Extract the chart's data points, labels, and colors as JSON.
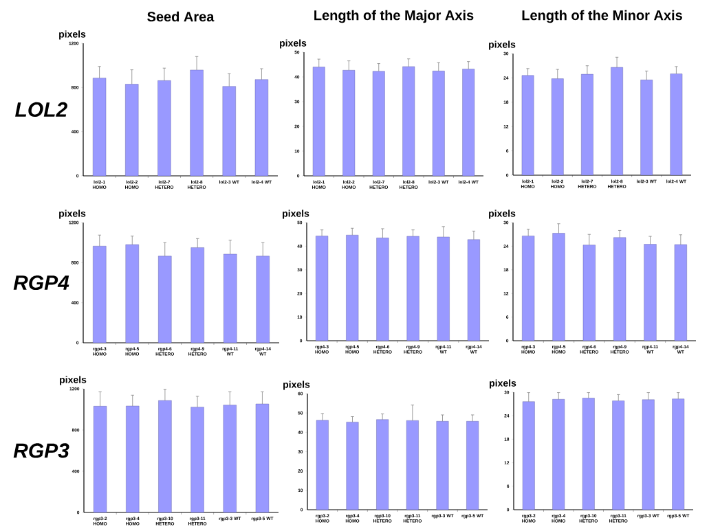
{
  "chart_data": [
    {
      "type": "bar",
      "title": "Seed Area",
      "ylabel": "pixels",
      "annotations": [
        "LOL2"
      ],
      "color": "#9999ff",
      "categories": [
        "lol2-1 HOMO",
        "lol2-2 HOMO",
        "lol2-7 HETERO",
        "lol2-8 HETERO",
        "lol2-3 WT",
        "lol2-4 WT"
      ],
      "values": [
        885,
        830,
        862,
        958,
        810,
        872
      ],
      "errors": [
        105,
        130,
        113,
        122,
        115,
        98
      ],
      "ylim": [
        0,
        1200
      ],
      "yticks": [
        0,
        400,
        800,
        1200
      ]
    },
    {
      "type": "bar",
      "title": "Length of the Major Axis",
      "ylabel": "pixels",
      "color": "#9999ff",
      "categories": [
        "lol2-1 HOMO",
        "lol2-2 HOMO",
        "lol2-7 HETERO",
        "lol2-8 HETERO",
        "lol2-3 WT",
        "lol2-4 WT"
      ],
      "values": [
        44.0,
        42.7,
        42.3,
        44.2,
        42.4,
        43.2
      ],
      "errors": [
        3.2,
        3.8,
        3.1,
        3.1,
        3.4,
        3.0
      ],
      "ylim": [
        0,
        50
      ],
      "yticks": [
        0,
        10,
        20,
        30,
        40,
        50
      ]
    },
    {
      "type": "bar",
      "title": "Length of the Minor Axis",
      "ylabel": "pixels",
      "color": "#9999ff",
      "categories": [
        "lol2-1 HOMO",
        "lol2-2 HOMO",
        "lol2-7 HETERO",
        "lol2-8 HETERO",
        "lol2-3 WT",
        "lol2-4 WT"
      ],
      "values": [
        24.6,
        23.8,
        24.9,
        26.6,
        23.5,
        25.0
      ],
      "errors": [
        1.7,
        2.3,
        2.1,
        2.5,
        2.2,
        1.8
      ],
      "ylim": [
        0,
        30
      ],
      "yticks": [
        0,
        6,
        12,
        18,
        24,
        30
      ]
    },
    {
      "type": "bar",
      "ylabel": "pixels",
      "annotations": [
        "RGP4"
      ],
      "color": "#9999ff",
      "categories": [
        "rgp4-3 HOMO",
        "rgp4-5 HOMO",
        "rgp4-6 HETERO",
        "rgp4-9 HETERO",
        "rgp4-11 WT",
        "rgp4-14 WT"
      ],
      "values": [
        965,
        980,
        865,
        950,
        885,
        865
      ],
      "errors": [
        110,
        85,
        135,
        90,
        140,
        135
      ],
      "ylim": [
        0,
        1200
      ],
      "yticks": [
        0,
        400,
        800,
        1200
      ]
    },
    {
      "type": "bar",
      "ylabel": "pixels",
      "color": "#9999ff",
      "categories": [
        "rgp4-3 HOMO",
        "rgp4-5 HOMO",
        "rgp4-6 HETERO",
        "rgp4-9 HETERO",
        "rgp4-11 WT",
        "rgp4-14 WT"
      ],
      "values": [
        44.3,
        44.7,
        43.5,
        44.2,
        43.9,
        42.8
      ],
      "errors": [
        2.6,
        2.9,
        3.9,
        2.7,
        4.4,
        3.6
      ],
      "ylim": [
        0,
        50
      ],
      "yticks": [
        0,
        10,
        20,
        30,
        40,
        50
      ]
    },
    {
      "type": "bar",
      "ylabel": "pixels",
      "color": "#9999ff",
      "categories": [
        "rgp4-3 HOMO",
        "rgp4-5 HOMO",
        "rgp4-6 HETERO",
        "rgp4-9 HETERO",
        "rgp4-11 WT",
        "rgp4-14 WT"
      ],
      "values": [
        26.6,
        27.3,
        24.3,
        26.2,
        24.5,
        24.4
      ],
      "errors": [
        1.7,
        2.4,
        2.7,
        1.8,
        2.0,
        2.5
      ],
      "ylim": [
        0,
        30
      ],
      "yticks": [
        0,
        6,
        12,
        18,
        24,
        30
      ]
    },
    {
      "type": "bar",
      "ylabel": "pixels",
      "annotations": [
        "RGP3"
      ],
      "color": "#9999ff",
      "categories": [
        "rgp3-2 HOMO",
        "rgp3-4 HOMO",
        "rgp3-10 HETERO",
        "rgp3-11 HETERO",
        "rgp3-3 WT",
        "rgp3-5 WT"
      ],
      "values": [
        1031,
        1033,
        1087,
        1022,
        1042,
        1053
      ],
      "errors": [
        140,
        105,
        108,
        105,
        129,
        118
      ],
      "ylim": [
        0,
        1200
      ],
      "yticks": [
        0,
        400,
        800,
        1200
      ]
    },
    {
      "type": "bar",
      "ylabel": "pixels",
      "color": "#9999ff",
      "categories": [
        "rgp3-2 HOMO",
        "rgp3-4 HOMO",
        "rgp3-10 HETERO",
        "rgp3-11 HETERO",
        "rgp3-3 WT",
        "rgp3-5 WT"
      ],
      "values": [
        46.2,
        45.3,
        46.6,
        46.1,
        45.7,
        45.7
      ],
      "errors": [
        3.5,
        2.8,
        2.9,
        8.0,
        3.3,
        3.3
      ],
      "ylim": [
        0,
        60
      ],
      "yticks": [
        0,
        10,
        20,
        30,
        40,
        50,
        60
      ]
    },
    {
      "type": "bar",
      "ylabel": "pixels",
      "color": "#9999ff",
      "categories": [
        "rgp3-2 HOMO",
        "rgp3-4 HOMO",
        "rgp3-10 HETERO",
        "rgp3-11 HETERO",
        "rgp3-3 WT",
        "rgp3-5 WT"
      ],
      "values": [
        27.6,
        28.2,
        28.5,
        27.8,
        28.1,
        28.3
      ],
      "errors": [
        2.3,
        1.7,
        1.4,
        1.6,
        1.8,
        1.6
      ],
      "ylim": [
        0,
        30
      ],
      "yticks": [
        0,
        6,
        12,
        18,
        24,
        30
      ]
    }
  ]
}
